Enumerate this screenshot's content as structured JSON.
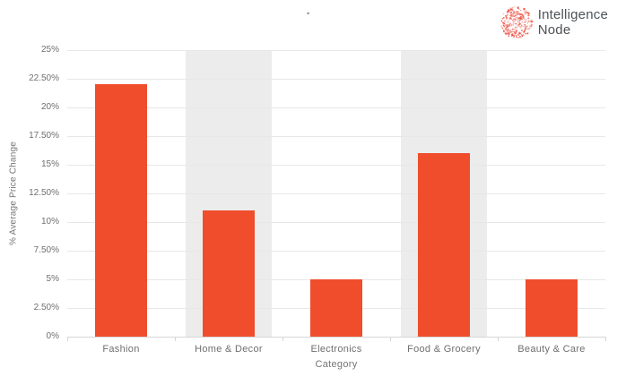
{
  "header": {
    "title_marker": "·",
    "logo": {
      "name": "Intelligence Node",
      "line1": "Intelligence",
      "line2": "Node",
      "icon": "dotted-sphere-icon",
      "dot_color": "#ee4f41",
      "text_color": "#4d5256"
    }
  },
  "chart_data": {
    "type": "bar",
    "title": "",
    "categories": [
      "Fashion",
      "Home & Decor",
      "Electronics",
      "Food & Grocery",
      "Beauty & Care"
    ],
    "values": [
      22,
      11,
      5,
      16,
      5
    ],
    "xlabel": "Category",
    "ylabel": "% Average Price Change",
    "ylim": [
      0,
      25
    ],
    "y_tick_step": 2.5,
    "y_ticks": [
      "25%",
      "22.50%",
      "20%",
      "17.50%",
      "15%",
      "12.50%",
      "10%",
      "7.50%",
      "5%",
      "2.50%",
      "0%"
    ],
    "grid": true,
    "legend": "none",
    "highlighted_columns": [
      1,
      3
    ],
    "colors": {
      "bar": "#f04d2d",
      "band": "#ececec",
      "gridline": "#e7e7e7",
      "axis_line": "#d6d6d6",
      "axis_text": "#6f6f6f"
    }
  }
}
